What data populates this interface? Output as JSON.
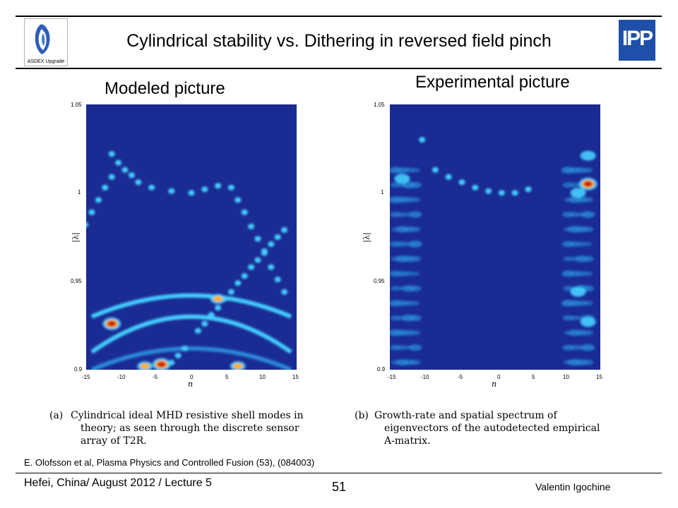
{
  "slide": {
    "title": "Cylindrical stability vs. Dithering in reversed field pinch",
    "left_logo_text": "ASDEX Upgrade",
    "right_logo_text": "IPP",
    "page_number": "51",
    "footer_left": "Hefei, China/ August 2012 / Lecture 5",
    "footer_right": "Valentin Igochine",
    "reference": "E. Olofsson et al, Plasma Physics and Controlled Fusion (53), (084003)"
  },
  "left_panel": {
    "heading": "Modeled picture",
    "xlabel": "n",
    "ylabel": "|λ|",
    "x_ticks": [
      "-15",
      "-10",
      "-5",
      "0",
      "5",
      "10",
      "15"
    ],
    "y_ticks": [
      "1.05",
      "1",
      "0.95",
      "0.9"
    ],
    "caption_label": "(a)",
    "caption_lines": [
      "Cylindrical ideal MHD resistive shell modes in",
      "theory; as seen through the discrete sensor",
      "array of T2R."
    ]
  },
  "right_panel": {
    "heading": "Experimental picture",
    "xlabel": "n",
    "ylabel": "|λ|",
    "x_ticks": [
      "-15",
      "-10",
      "-5",
      "0",
      "5",
      "10",
      "15"
    ],
    "y_ticks": [
      "1.05",
      "1",
      "0.95",
      "0.9"
    ],
    "caption_label": "(b)",
    "caption_lines": [
      "Growth-rate and spatial spectrum of",
      "eigenvectors of the autodetected empirical",
      "A-matrix."
    ]
  },
  "chart_data": [
    {
      "type": "heatmap",
      "xlabel": "n",
      "ylabel": "|λ|",
      "xlim": [
        -15,
        15
      ],
      "ylim": [
        0.9,
        1.05
      ],
      "colors": {
        "background": "#1a2b94",
        "low": "#2a8ad8",
        "mid": "#45d0ff",
        "high": "#ffb000",
        "peak": "#d01010"
      },
      "mode_points": [
        {
          "x": -12,
          "y": 1.022
        },
        {
          "x": -11,
          "y": 1.017
        },
        {
          "x": -10,
          "y": 1.013
        },
        {
          "x": -9,
          "y": 1.01
        },
        {
          "x": -8,
          "y": 1.006
        },
        {
          "x": -6,
          "y": 1.003
        },
        {
          "x": -3,
          "y": 1.001
        },
        {
          "x": 0,
          "y": 1.0
        },
        {
          "x": 2,
          "y": 1.002
        },
        {
          "x": 4,
          "y": 1.004
        },
        {
          "x": 6,
          "y": 1.003
        },
        {
          "x": 7,
          "y": 0.996
        },
        {
          "x": 8,
          "y": 0.989
        },
        {
          "x": 9,
          "y": 0.981
        },
        {
          "x": 10,
          "y": 0.974
        },
        {
          "x": 11,
          "y": 0.966
        },
        {
          "x": 12,
          "y": 0.958
        },
        {
          "x": 13,
          "y": 0.951
        },
        {
          "x": 14,
          "y": 0.944
        },
        {
          "x": -16,
          "y": 0.982
        },
        {
          "x": -15,
          "y": 0.989
        },
        {
          "x": -14,
          "y": 0.996
        },
        {
          "x": -13,
          "y": 1.003
        },
        {
          "x": -12,
          "y": 1.009
        },
        {
          "x": 1,
          "y": 0.922
        },
        {
          "x": 2,
          "y": 0.926
        },
        {
          "x": 3,
          "y": 0.931
        },
        {
          "x": 4,
          "y": 0.935
        },
        {
          "x": 5,
          "y": 0.94
        },
        {
          "x": 6,
          "y": 0.944
        },
        {
          "x": 7,
          "y": 0.949
        },
        {
          "x": 8,
          "y": 0.953
        },
        {
          "x": 9,
          "y": 0.958
        },
        {
          "x": 10,
          "y": 0.962
        },
        {
          "x": 11,
          "y": 0.967
        },
        {
          "x": 12,
          "y": 0.971
        },
        {
          "x": 13,
          "y": 0.975
        },
        {
          "x": 14,
          "y": 0.979
        },
        {
          "x": -1,
          "y": 0.912
        },
        {
          "x": -2,
          "y": 0.908
        },
        {
          "x": -3,
          "y": 0.904
        }
      ],
      "bands": [
        {
          "y_start": 0.93,
          "y_mid": 0.942,
          "y_end": 0.93,
          "intensity": "mid"
        },
        {
          "y_start": 0.91,
          "y_mid": 0.93,
          "y_end": 0.91,
          "intensity": "mid"
        },
        {
          "y_start": 0.9,
          "y_mid": 0.912,
          "y_end": 0.9,
          "intensity": "low"
        }
      ],
      "hotspots": [
        {
          "x": -12,
          "y": 0.926,
          "level": "peak"
        },
        {
          "x": -4.5,
          "y": 0.903,
          "level": "peak"
        },
        {
          "x": 7,
          "y": 0.902,
          "level": "high"
        },
        {
          "x": -7,
          "y": 0.902,
          "level": "high"
        },
        {
          "x": 4,
          "y": 0.94,
          "level": "high"
        }
      ]
    },
    {
      "type": "heatmap",
      "xlabel": "n",
      "ylabel": "|λ|",
      "xlim": [
        -15,
        15
      ],
      "ylim": [
        0.9,
        1.05
      ],
      "colors": {
        "background": "#1a2b94",
        "low": "#2a8ad8",
        "mid": "#45d0ff",
        "high": "#ffb000",
        "peak": "#d01010"
      },
      "mode_points": [
        {
          "x": -11,
          "y": 1.03
        },
        {
          "x": -9,
          "y": 1.013
        },
        {
          "x": -7,
          "y": 1.009
        },
        {
          "x": -5,
          "y": 1.006
        },
        {
          "x": -3,
          "y": 1.003
        },
        {
          "x": -1,
          "y": 1.001
        },
        {
          "x": 1,
          "y": 1.0
        },
        {
          "x": 3,
          "y": 1.0
        },
        {
          "x": 5,
          "y": 1.002
        }
      ],
      "hotspots": [
        {
          "x": 14,
          "y": 1.005,
          "level": "peak"
        },
        {
          "x": 14,
          "y": 1.021,
          "level": "mid"
        },
        {
          "x": 12.5,
          "y": 1.0,
          "level": "mid"
        },
        {
          "x": -14,
          "y": 1.008,
          "level": "mid"
        },
        {
          "x": 14,
          "y": 0.927,
          "level": "mid"
        },
        {
          "x": 12.5,
          "y": 0.944,
          "level": "low"
        }
      ],
      "noise_columns": [
        -15,
        -14,
        -13,
        -12,
        11,
        12,
        13,
        14
      ]
    }
  ]
}
